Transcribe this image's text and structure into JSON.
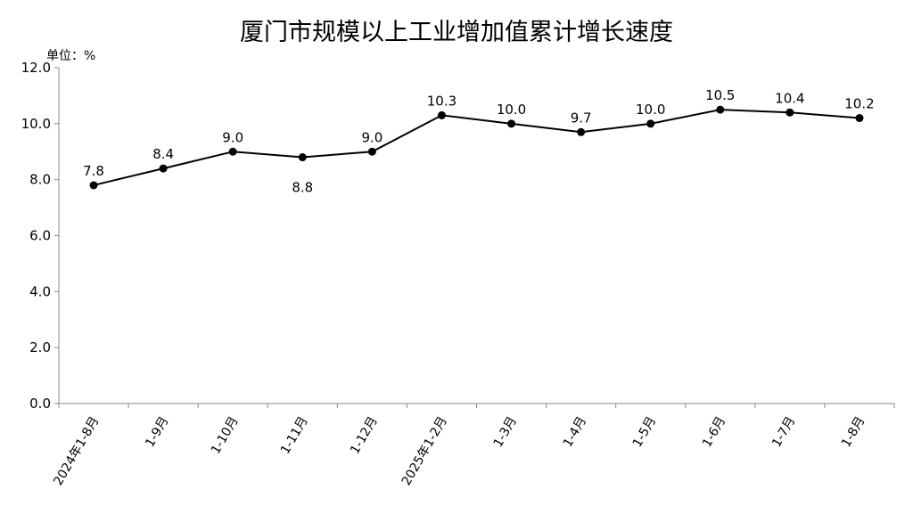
{
  "chart_data": {
    "type": "line",
    "title": "厦门市规模以上工业增加值累计增长速度",
    "unit_label": "单位：%",
    "xlabel": "",
    "ylabel": "",
    "ylim": [
      0,
      12
    ],
    "y_ticks": [
      "0.0",
      "2.0",
      "4.0",
      "6.0",
      "8.0",
      "10.0",
      "12.0"
    ],
    "categories": [
      "2024年1-8月",
      "1-9月",
      "1-10月",
      "1-11月",
      "1-12月",
      "2025年1-2月",
      "1-3月",
      "1-4月",
      "1-5月",
      "1-6月",
      "1-7月",
      "1-8月"
    ],
    "values": [
      7.8,
      8.4,
      9.0,
      8.8,
      9.0,
      10.3,
      10.0,
      9.7,
      10.0,
      10.5,
      10.4,
      10.2
    ],
    "data_labels": [
      "7.8",
      "8.4",
      "9.0",
      "8.8",
      "9.0",
      "10.3",
      "10.0",
      "9.7",
      "10.0",
      "10.5",
      "10.4",
      "10.2"
    ],
    "grid": false,
    "legend": "none",
    "colors": {
      "line": "#000000",
      "marker": "#000000",
      "axis": "#888888"
    }
  }
}
